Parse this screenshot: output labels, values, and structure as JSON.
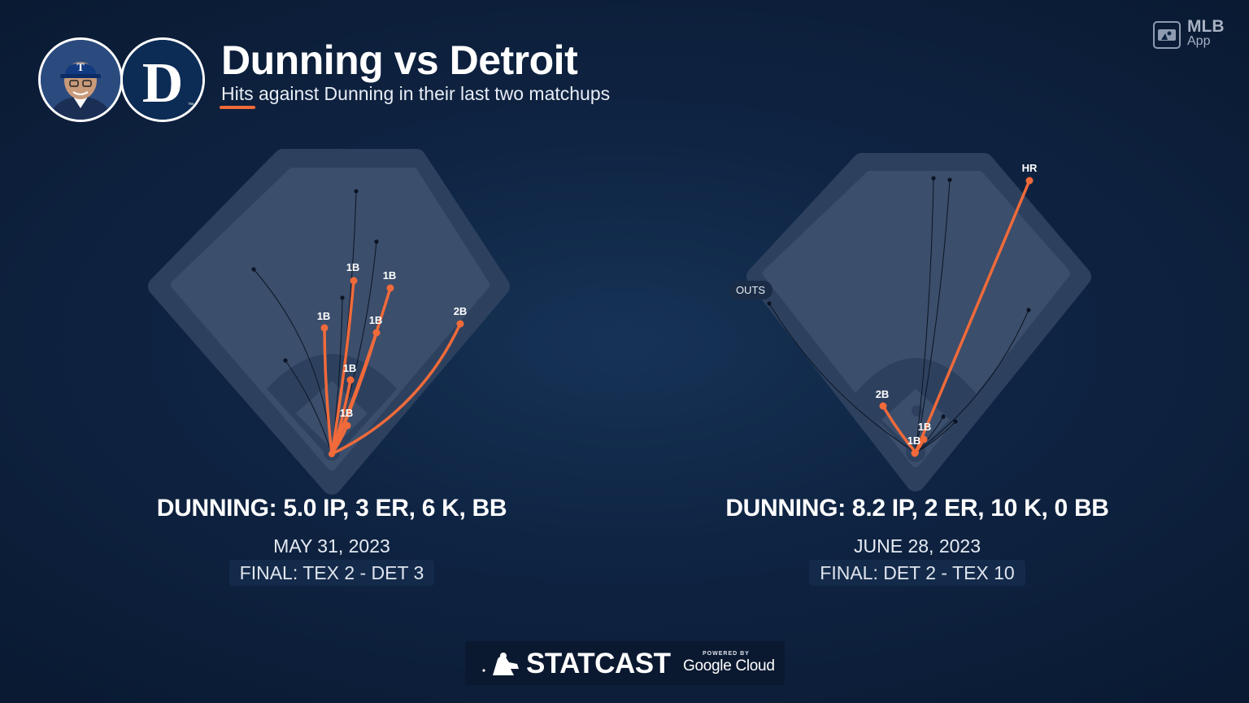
{
  "header": {
    "title": "Dunning vs Detroit",
    "subtitle": "Hits against Dunning in their last two matchups",
    "team_cap_letter": "T",
    "team_logo_letter": "D",
    "team_logo_tm": "™"
  },
  "badge": {
    "line1": "MLB",
    "line2": "App"
  },
  "colors": {
    "hit": "#f06a3a",
    "out": "#0b1424",
    "field": "#3b4e6b",
    "warning_track": "#2d415f",
    "background": "#0f2443"
  },
  "games": [
    {
      "stat_line": "DUNNING: 5.0 IP, 3 ER, 6 K, BB",
      "date": "MAY 31, 2023",
      "final": "FINAL: TEX 2 - DET 3",
      "hits": [
        {
          "label": "1B"
        },
        {
          "label": "1B"
        },
        {
          "label": "1B"
        },
        {
          "label": "1B"
        },
        {
          "label": "2B"
        },
        {
          "label": "1B"
        },
        {
          "label": "1B"
        }
      ]
    },
    {
      "stat_line": "DUNNING: 8.2 IP, 2 ER, 10 K, 0 BB",
      "date": "JUNE 28, 2023",
      "final": "FINAL: DET 2 - TEX 10",
      "outs_label": "OUTS",
      "hits": [
        {
          "label": "HR"
        },
        {
          "label": "2B"
        },
        {
          "label": "1B"
        },
        {
          "label": "1B"
        }
      ]
    }
  ],
  "footer": {
    "brand": "STATCAST",
    "powered_by": "POWERED BY",
    "partner": "Google Cloud"
  }
}
